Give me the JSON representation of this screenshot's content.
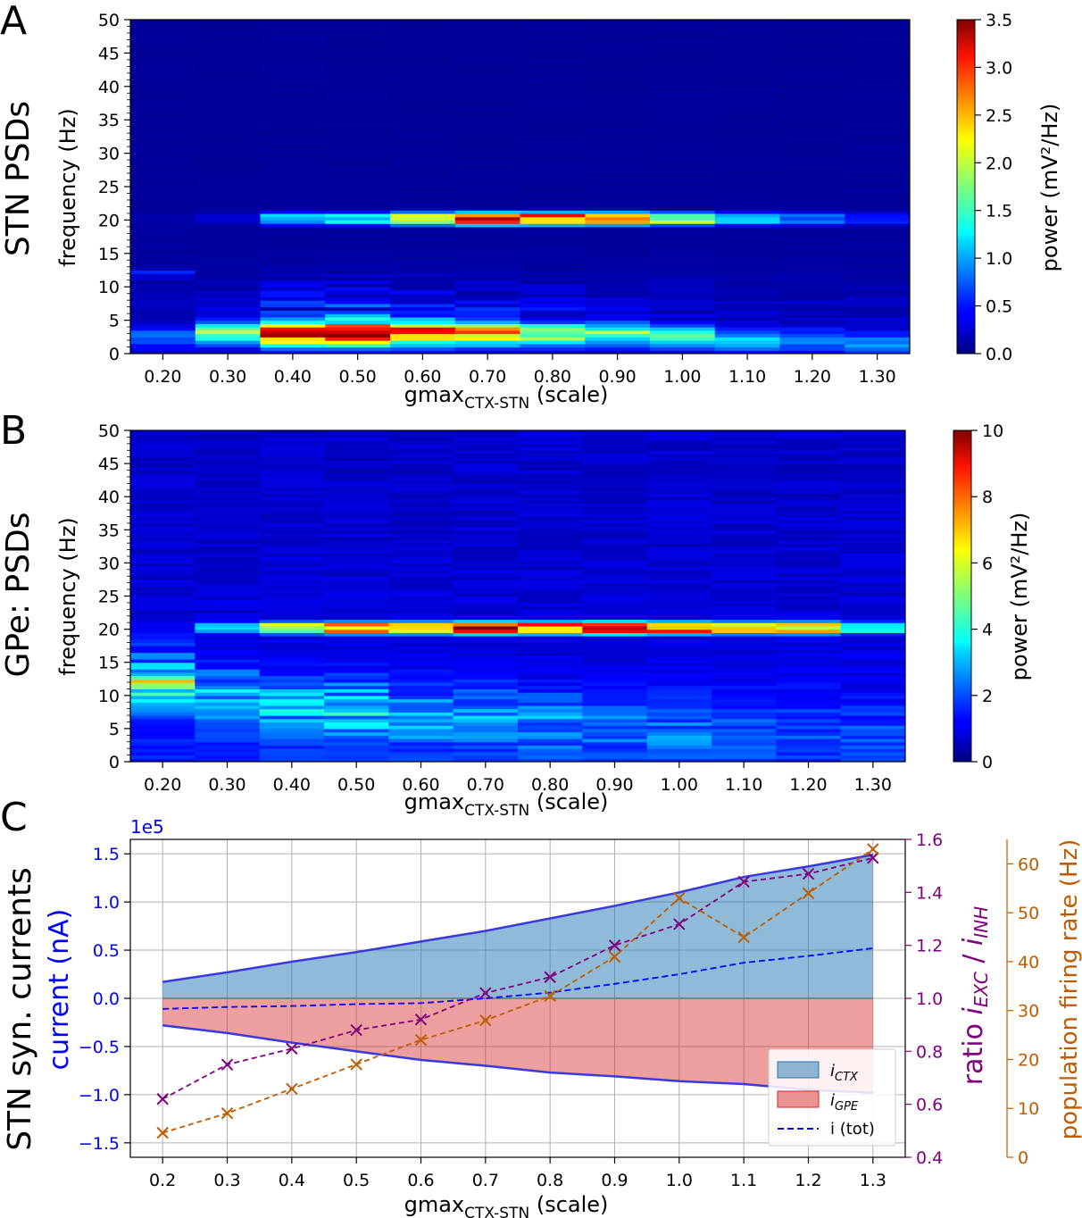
{
  "panels": {
    "A": {
      "letter": "A",
      "ylabel_row": "STN PSDs"
    },
    "B": {
      "letter": "B",
      "ylabel_row": "GPe: PSDs"
    },
    "C": {
      "letter": "C",
      "ylabel_row": "STN syn. currents"
    }
  },
  "colormap": "jet",
  "chart_data": [
    {
      "type": "heatmap",
      "panel": "A",
      "xlabel": "gmax",
      "xlabel_sub": "CTX-STN",
      "xlabel_suffix": "(scale)",
      "ylabel": "frequency (Hz)",
      "x_ticks": [
        "0.20",
        "0.30",
        "0.40",
        "0.50",
        "0.60",
        "0.70",
        "0.80",
        "0.90",
        "1.00",
        "1.10",
        "1.20",
        "1.30"
      ],
      "y_ticks": [
        "0",
        "5",
        "10",
        "15",
        "20",
        "25",
        "30",
        "35",
        "40",
        "45",
        "50"
      ],
      "ylim": [
        0,
        50
      ],
      "x_columns": [
        0.2,
        0.3,
        0.4,
        0.5,
        0.6,
        0.7,
        0.8,
        0.9,
        1.0,
        1.1,
        1.2,
        1.3
      ],
      "colorbar": {
        "label": "power (mV²/Hz)",
        "vmin": 0,
        "vmax": 3.5,
        "ticks": [
          "0.0",
          "0.5",
          "1.0",
          "1.5",
          "2.0",
          "2.5",
          "3.0",
          "3.5"
        ]
      },
      "peak_20hz_power": [
        0.15,
        0.3,
        1.2,
        1.3,
        2.3,
        3.2,
        3.0,
        2.8,
        2.0,
        1.2,
        0.9,
        0.6
      ],
      "low_freq_power": [
        0.6,
        1.5,
        3.1,
        3.5,
        2.7,
        2.2,
        1.7,
        1.5,
        1.2,
        0.9,
        0.75,
        0.7
      ],
      "low_freq_center_hz": [
        2.5,
        3,
        3,
        3,
        3,
        3,
        3,
        3,
        2.5,
        2,
        2,
        1.5
      ]
    },
    {
      "type": "heatmap",
      "panel": "B",
      "xlabel": "gmax",
      "xlabel_sub": "CTX-STN",
      "xlabel_suffix": "(scale)",
      "ylabel": "frequency (Hz)",
      "x_ticks": [
        "0.20",
        "0.30",
        "0.40",
        "0.50",
        "0.60",
        "0.70",
        "0.80",
        "0.90",
        "1.00",
        "1.10",
        "1.20",
        "1.30"
      ],
      "y_ticks": [
        "0",
        "5",
        "10",
        "15",
        "20",
        "25",
        "30",
        "35",
        "40",
        "45",
        "50"
      ],
      "ylim": [
        0,
        50
      ],
      "x_columns": [
        0.2,
        0.3,
        0.4,
        0.5,
        0.6,
        0.7,
        0.8,
        0.9,
        1.0,
        1.1,
        1.2,
        1.3
      ],
      "colorbar": {
        "label": "power (mV²/Hz)",
        "vmin": 0,
        "vmax": 10,
        "ticks": [
          "0",
          "2",
          "4",
          "6",
          "8",
          "10"
        ]
      },
      "peak_20hz_power": [
        0.8,
        3.5,
        6.0,
        7.5,
        7.5,
        9.5,
        8.5,
        10.0,
        8.5,
        7.0,
        7.5,
        4.5
      ],
      "low_freq_power": [
        3.3,
        2.6,
        2.4,
        2.6,
        1.9,
        1.7,
        1.6,
        1.3,
        1.3,
        1.0,
        0.8,
        0.7
      ],
      "low_freq_center_hz": [
        12,
        10,
        8,
        8,
        7,
        7,
        6,
        6,
        5,
        5,
        5,
        5
      ]
    },
    {
      "type": "area",
      "panel": "C",
      "x": [
        0.2,
        0.3,
        0.4,
        0.5,
        0.6,
        0.7,
        0.8,
        0.9,
        1.0,
        1.1,
        1.2,
        1.3
      ],
      "x_ticks": [
        "0.2",
        "0.3",
        "0.4",
        "0.5",
        "0.6",
        "0.7",
        "0.8",
        "0.9",
        "1.0",
        "1.1",
        "1.2",
        "1.3"
      ],
      "xlabel": "gmax",
      "xlabel_sub": "CTX-STN",
      "xlabel_suffix": "(scale)",
      "xlim": [
        0.15,
        1.35
      ],
      "left_axis": {
        "label": "current (nA)",
        "color": "#0000ff",
        "offset_text": "1e5",
        "ylim": [
          -1.65,
          1.65
        ],
        "ticks": [
          "−1.5",
          "−1.0",
          "−0.5",
          "0.0",
          "0.5",
          "1.0",
          "1.5"
        ],
        "tick_values": [
          -1.5,
          -1.0,
          -0.5,
          0.0,
          0.5,
          1.0,
          1.5
        ]
      },
      "ratio_axis": {
        "label_prefix": "ratio ",
        "label_i1": "i",
        "label_sub1": "EXC",
        "label_sep": " / ",
        "label_i2": "i",
        "label_sub2": "INH",
        "color": "#800080",
        "ylim": [
          0.4,
          1.6
        ],
        "ticks": [
          "0.4",
          "0.6",
          "0.8",
          "1.0",
          "1.2",
          "1.4",
          "1.6"
        ],
        "tick_values": [
          0.4,
          0.6,
          0.8,
          1.0,
          1.2,
          1.4,
          1.6
        ]
      },
      "rate_axis": {
        "label": "population firing rate (Hz)",
        "color": "#bf5b00",
        "ylim": [
          0,
          65
        ],
        "ticks": [
          "0",
          "10",
          "20",
          "30",
          "40",
          "50",
          "60"
        ],
        "tick_values": [
          0,
          10,
          20,
          30,
          40,
          50,
          60
        ]
      },
      "series": [
        {
          "name_i": "i",
          "name_sub": "CTX",
          "axis": "left",
          "kind": "area",
          "color": "#1f77b4",
          "edge": "#3a3adc",
          "values": [
            0.17,
            0.27,
            0.38,
            0.48,
            0.59,
            0.7,
            0.83,
            0.96,
            1.1,
            1.26,
            1.37,
            1.49
          ]
        },
        {
          "name_i": "i",
          "name_sub": "GPE",
          "axis": "left",
          "kind": "area",
          "color": "#d62728",
          "edge": "#3a3adc",
          "values": [
            -0.28,
            -0.36,
            -0.46,
            -0.55,
            -0.64,
            -0.7,
            -0.77,
            -0.81,
            -0.86,
            -0.89,
            -0.95,
            -0.98
          ]
        },
        {
          "name": "i (tot)",
          "axis": "left",
          "kind": "dashed",
          "color": "#0000ff",
          "values": [
            -0.11,
            -0.09,
            -0.08,
            -0.06,
            -0.05,
            0.0,
            0.06,
            0.15,
            0.25,
            0.37,
            0.44,
            0.52
          ]
        },
        {
          "axis": "ratio",
          "kind": "markers",
          "color": "#800080",
          "values": [
            0.62,
            0.75,
            0.81,
            0.88,
            0.92,
            1.02,
            1.08,
            1.2,
            1.28,
            1.44,
            1.47,
            1.53
          ]
        },
        {
          "axis": "rate",
          "kind": "markers",
          "color": "#bf5b00",
          "values": [
            5,
            9,
            14,
            19,
            24,
            28,
            33,
            41,
            53,
            45,
            54,
            63
          ]
        }
      ]
    }
  ]
}
